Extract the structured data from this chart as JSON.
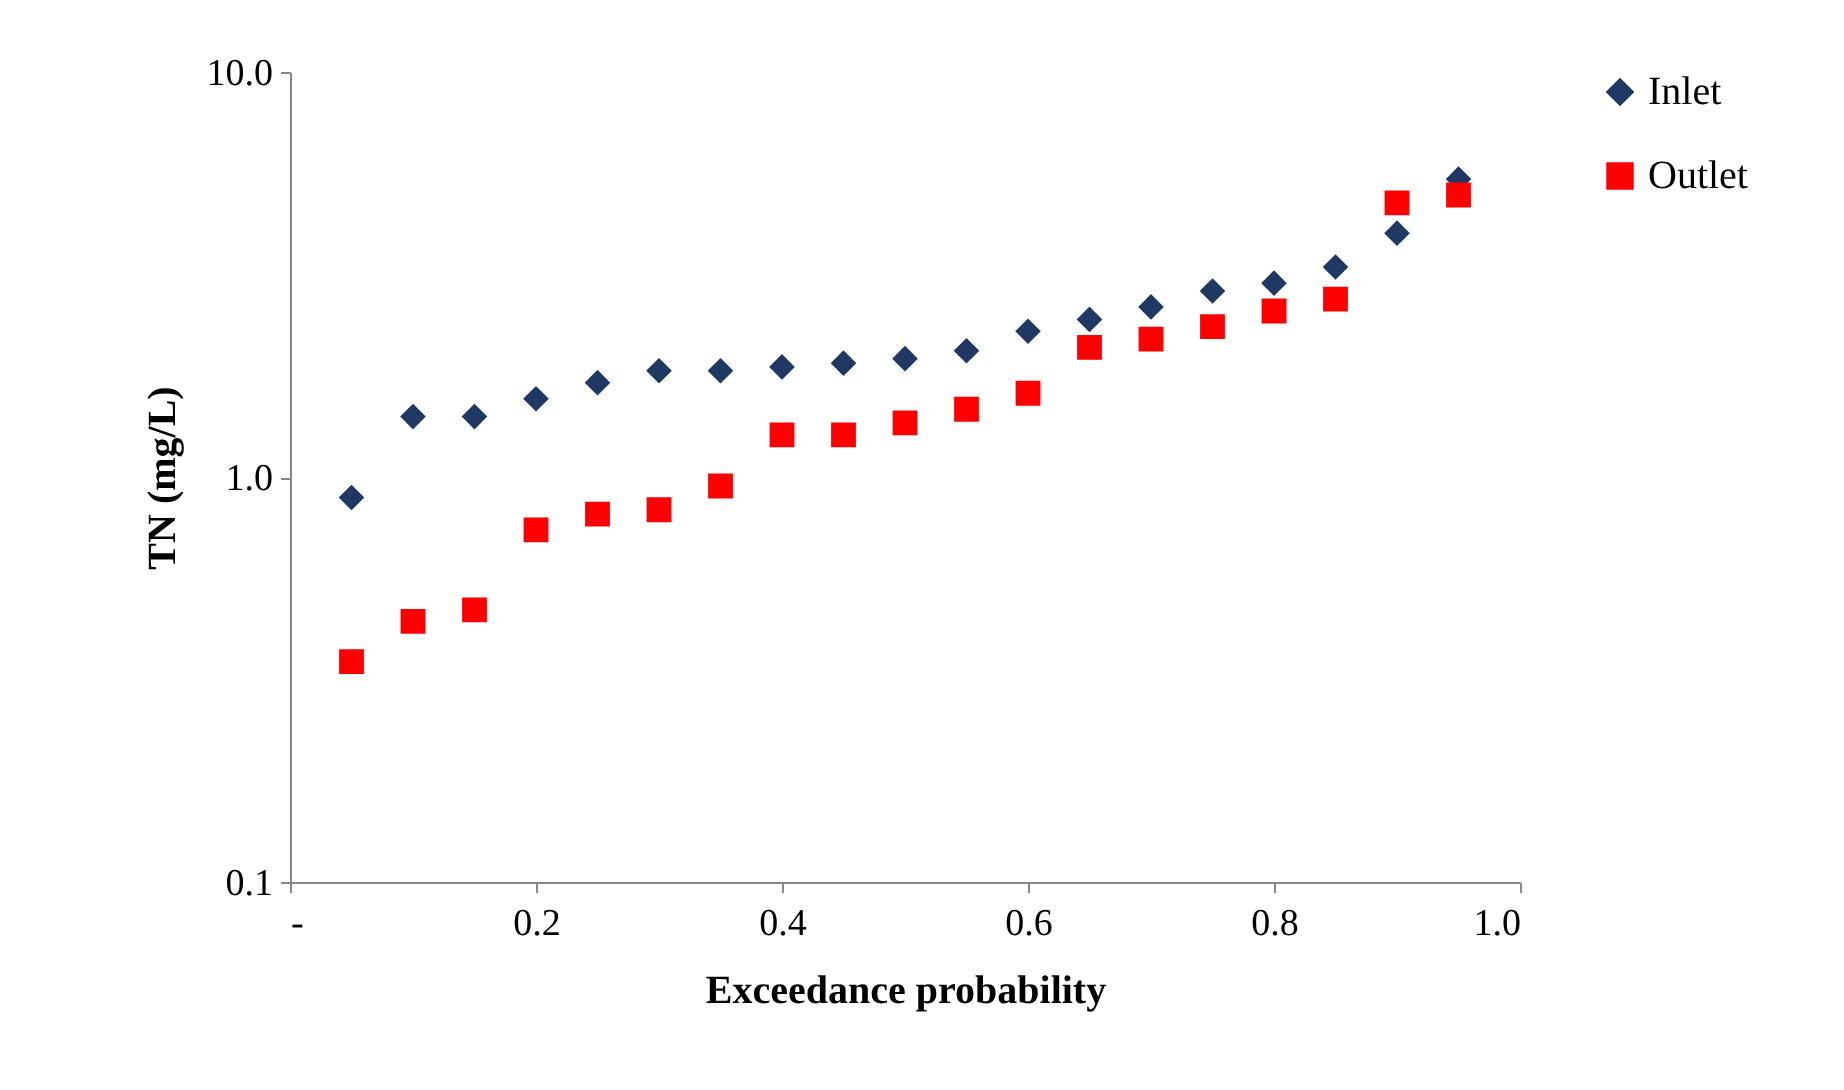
{
  "chart_data": {
    "type": "scatter",
    "xlabel": "Exceedance probability",
    "ylabel": "TN (mg/L)",
    "log": "y",
    "grid": false,
    "legend": "right",
    "xlim": [
      0,
      1
    ],
    "xticks": [
      {
        "value": 0,
        "label": "-"
      },
      0.2,
      0.4,
      0.6,
      0.8,
      {
        "value": 1,
        "label": "1.0"
      }
    ],
    "ylim": [
      0.1,
      10
    ],
    "yticks": [
      {
        "value": 0.1,
        "label": "0.1"
      },
      {
        "value": 1,
        "label": "1.0"
      },
      {
        "value": 10,
        "label": "10.0"
      }
    ],
    "x": [
      0.05,
      0.1,
      0.15,
      0.2,
      0.25,
      0.3,
      0.35,
      0.4,
      0.45,
      0.5,
      0.55,
      0.6,
      0.65,
      0.7,
      0.75,
      0.8,
      0.85,
      0.9,
      0.95
    ],
    "series": [
      {
        "name": "Inlet",
        "color": "#1f3864",
        "marker": "diamond",
        "values": [
          0.89,
          1.41,
          1.41,
          1.56,
          1.71,
          1.83,
          1.83,
          1.87,
          1.91,
          1.96,
          2.05,
          2.29,
          2.45,
          2.63,
          2.88,
          3.01,
          3.3,
          4.0,
          5.44
        ]
      },
      {
        "name": "Outlet",
        "color": "#ff0000",
        "marker": "square",
        "values": [
          0.35,
          0.44,
          0.47,
          0.74,
          0.81,
          0.83,
          0.95,
          1.27,
          1.27,
          1.36,
          1.47,
          1.61,
          2.09,
          2.19,
          2.35,
          2.57,
          2.75,
          4.75,
          4.97
        ]
      }
    ]
  }
}
